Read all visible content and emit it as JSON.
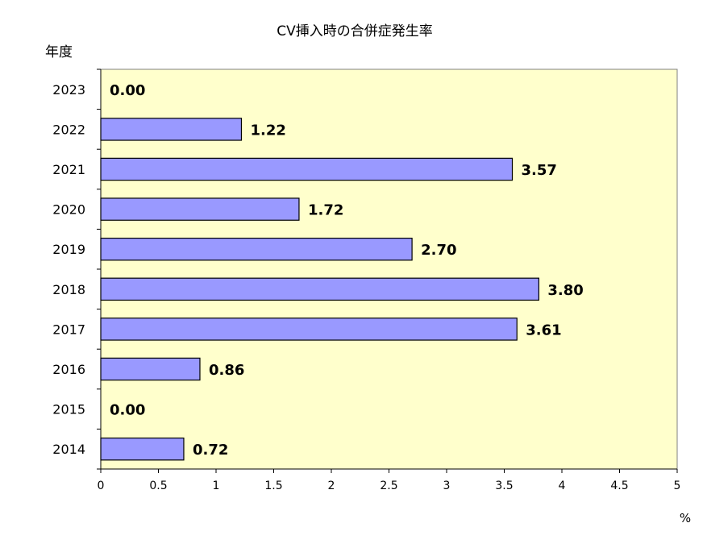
{
  "chart_data": {
    "type": "bar",
    "orientation": "horizontal",
    "title": "CV挿入時の合併症発生率",
    "ylabel": "年度",
    "xlabel": "%",
    "categories": [
      "2023",
      "2022",
      "2021",
      "2020",
      "2019",
      "2018",
      "2017",
      "2016",
      "2015",
      "2014"
    ],
    "values": [
      0.0,
      1.22,
      3.57,
      1.72,
      2.7,
      3.8,
      3.61,
      0.86,
      0.0,
      0.72
    ],
    "value_labels": [
      "0.00",
      "1.22",
      "3.57",
      "1.72",
      "2.70",
      "3.80",
      "3.61",
      "0.86",
      "0.00",
      "0.72"
    ],
    "xlim": [
      0,
      5
    ],
    "xticks": [
      "0",
      "0.5",
      "1",
      "1.5",
      "2",
      "2.5",
      "3",
      "3.5",
      "4",
      "4.5",
      "5"
    ],
    "grid": false,
    "legend": "none",
    "colors": {
      "bar": "#9999ff",
      "bar_stroke": "#000000",
      "plot_background": "#ffffcc"
    }
  }
}
